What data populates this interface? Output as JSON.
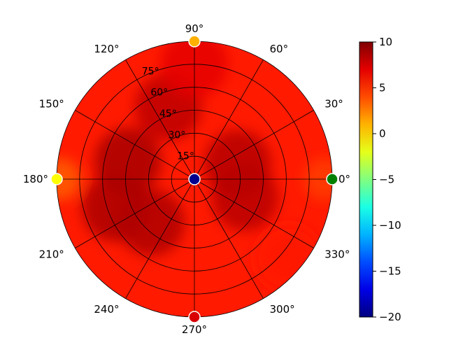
{
  "chart_data": {
    "type": "heatmap",
    "projection": "polar",
    "angular_ticks": [
      "0°",
      "30°",
      "60°",
      "90°",
      "120°",
      "150°",
      "180°",
      "210°",
      "240°",
      "270°",
      "300°",
      "330°"
    ],
    "angular_tick_values_deg": [
      0,
      30,
      60,
      90,
      120,
      150,
      180,
      210,
      240,
      270,
      300,
      330
    ],
    "radial_ticks": [
      "15°",
      "30°",
      "45°",
      "60°",
      "75°"
    ],
    "radial_tick_values": [
      15,
      30,
      45,
      60,
      75
    ],
    "radial_range": [
      0,
      90
    ],
    "grid": true,
    "colormap": "jet",
    "colorbar": {
      "ticks": [
        "10",
        "5",
        "0",
        "−5",
        "−10",
        "−15",
        "−20"
      ],
      "tick_values": [
        10,
        5,
        0,
        -5,
        -10,
        -15,
        -20
      ],
      "range": [
        -20,
        10
      ],
      "placement": "right"
    },
    "field_summary": "Mostly 6 to 8 across the hemisphere, with darker maxima near 8.5 to 9 around azimuth 150-240 deg and 30-330 deg at mid elevations; lower values near 3 to 5 at the rim around 0, 180-190 and 300-350 deg.",
    "field_samples": [
      {
        "az": 165,
        "r": 45,
        "value": 8.8
      },
      {
        "az": 200,
        "r": 55,
        "value": 8.7
      },
      {
        "az": 225,
        "r": 40,
        "value": 8.6
      },
      {
        "az": 20,
        "r": 30,
        "value": 8.4
      },
      {
        "az": 340,
        "r": 35,
        "value": 8.3
      },
      {
        "az": 110,
        "r": 50,
        "value": 8.2
      },
      {
        "az": 90,
        "r": 75,
        "value": 7.0
      },
      {
        "az": 0,
        "r": 85,
        "value": 4.5
      },
      {
        "az": 180,
        "r": 88,
        "value": 3.5
      },
      {
        "az": 320,
        "r": 80,
        "value": 5.5
      }
    ],
    "markers": [
      {
        "az": 0,
        "r": 0,
        "value": -20,
        "color": "#00008f"
      },
      {
        "az": 0,
        "r": 90,
        "value": -5,
        "color": "#008000"
      },
      {
        "az": 90,
        "r": 90,
        "value": 3,
        "color": "#ffb000"
      },
      {
        "az": 180,
        "r": 90,
        "value": 1,
        "color": "#ffff00"
      },
      {
        "az": 270,
        "r": 90,
        "value": 9,
        "color": "#d80000"
      }
    ]
  }
}
